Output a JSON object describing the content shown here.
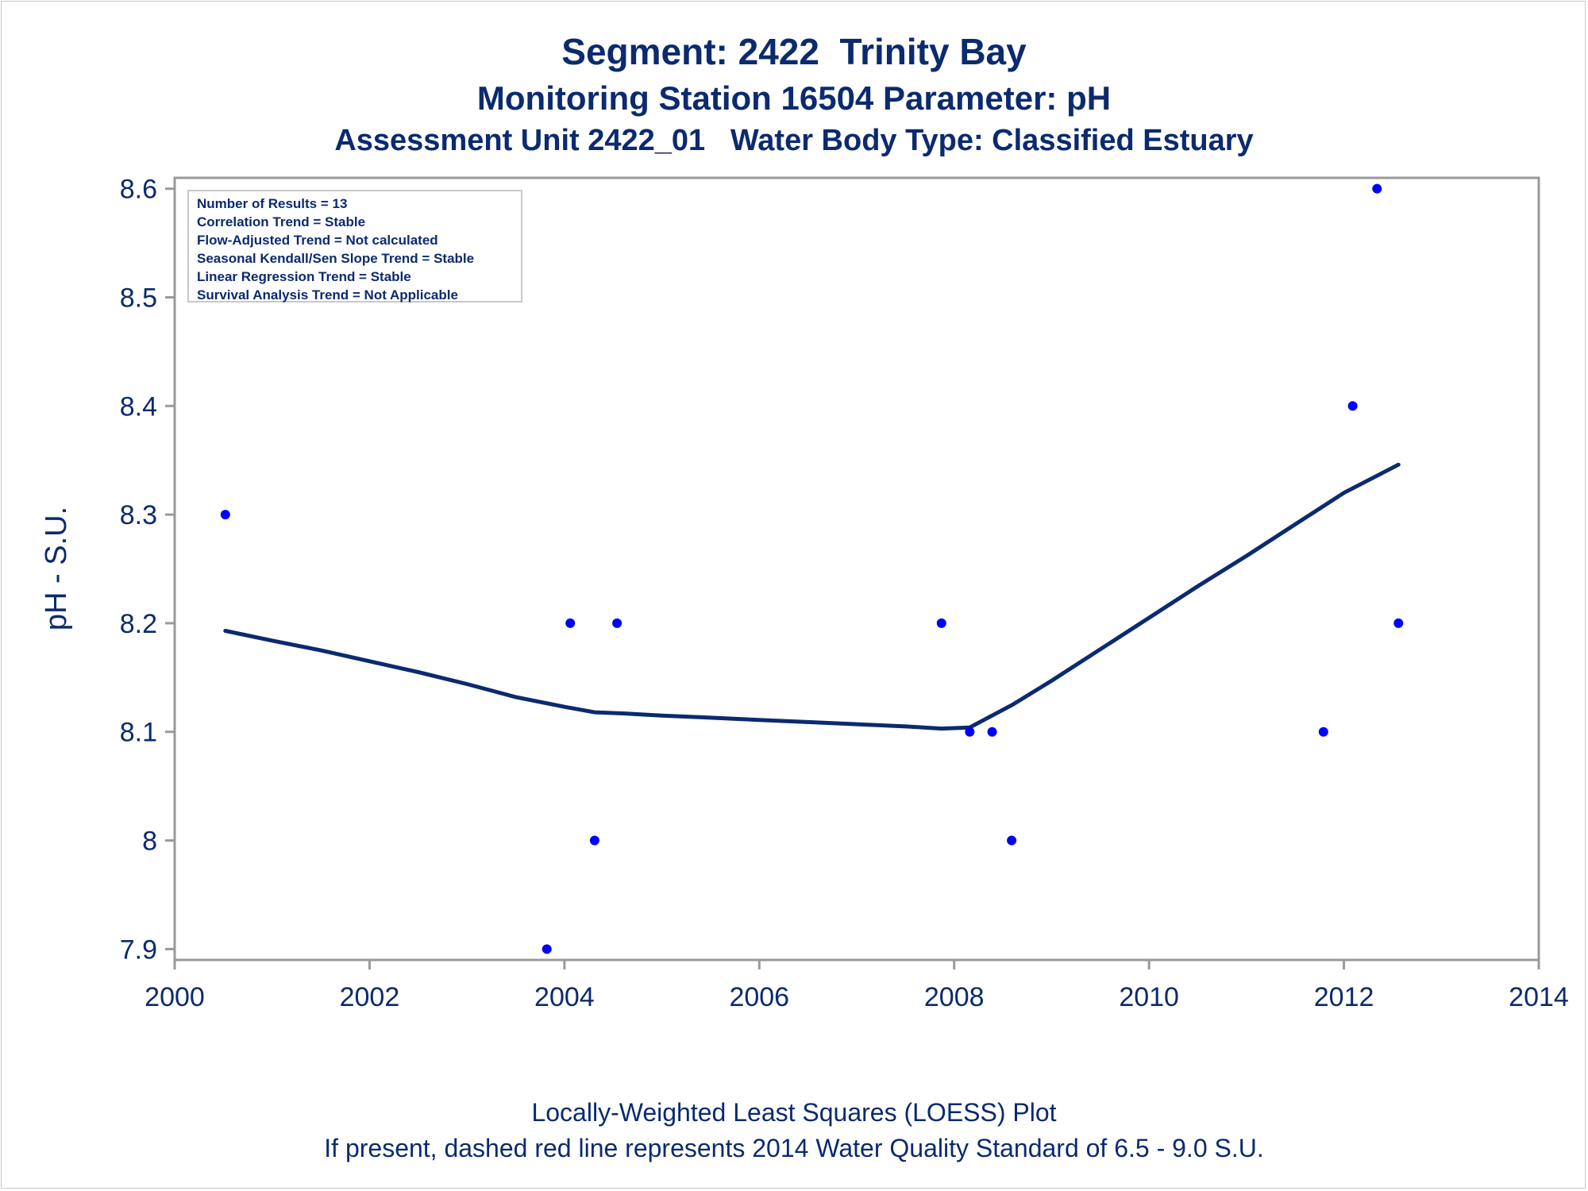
{
  "titles": {
    "line1": "Segment: 2422  Trinity Bay",
    "line2": "Monitoring Station 16504 Parameter: pH",
    "line3": "Assessment Unit 2422_01   Water Body Type: Classified Estuary"
  },
  "footnotes": {
    "line1": "Locally-Weighted Least Squares (LOESS) Plot",
    "line2": "If present, dashed red line represents 2014 Water Quality Standard of 6.5 - 9.0 S.U."
  },
  "inset": {
    "lines": [
      "Number of Results = 13",
      "Correlation Trend = Stable",
      "Flow-Adjusted Trend = Not calculated",
      "Seasonal Kendall/Sen Slope Trend = Stable",
      "Linear Regression Trend = Stable",
      "Survival Analysis Trend = Not Applicable"
    ]
  },
  "colors": {
    "text": "#0b2a6f",
    "points": "#0000ff",
    "loess": "#0b2a6f",
    "axis": "#9a9a9a"
  },
  "chart_data": {
    "type": "scatter",
    "ylabel": "pH - S.U.",
    "xlabel": "",
    "xlim": [
      2000,
      2014
    ],
    "ylim": [
      7.89,
      8.61
    ],
    "xticks": [
      2000,
      2002,
      2004,
      2006,
      2008,
      2010,
      2012,
      2014
    ],
    "xtick_labels": [
      "2000",
      "2002",
      "2004",
      "2006",
      "2008",
      "2010",
      "2012",
      "2014"
    ],
    "yticks": [
      7.9,
      8.0,
      8.1,
      8.2,
      8.3,
      8.4,
      8.5,
      8.6
    ],
    "ytick_labels": [
      "7.9",
      "8",
      "8.1",
      "8.2",
      "8.3",
      "8.4",
      "8.5",
      "8.6"
    ],
    "series": [
      {
        "kind": "scatter",
        "x": [
          2000.52,
          2003.82,
          2004.06,
          2004.31,
          2004.54,
          2007.87,
          2008.16,
          2008.39,
          2008.59,
          2011.79,
          2012.09,
          2012.34,
          2012.56
        ],
        "y": [
          8.3,
          7.9,
          8.2,
          8.0,
          8.2,
          8.2,
          8.1,
          8.1,
          8.0,
          8.1,
          8.4,
          8.6,
          8.2
        ]
      },
      {
        "kind": "line",
        "x": [
          2000.52,
          2001.0,
          2001.5,
          2002.0,
          2002.5,
          2003.0,
          2003.5,
          2004.0,
          2004.31,
          2004.6,
          2005.0,
          2005.5,
          2006.0,
          2006.5,
          2007.0,
          2007.5,
          2007.87,
          2008.16,
          2008.6,
          2009.0,
          2009.5,
          2010.0,
          2010.5,
          2011.0,
          2011.5,
          2012.0,
          2012.56
        ],
        "y": [
          8.193,
          8.184,
          8.175,
          8.165,
          8.155,
          8.144,
          8.132,
          8.123,
          8.118,
          8.117,
          8.115,
          8.113,
          8.111,
          8.109,
          8.107,
          8.105,
          8.103,
          8.104,
          8.125,
          8.147,
          8.176,
          8.205,
          8.234,
          8.262,
          8.291,
          8.32,
          8.346
        ]
      }
    ],
    "grid": false
  }
}
